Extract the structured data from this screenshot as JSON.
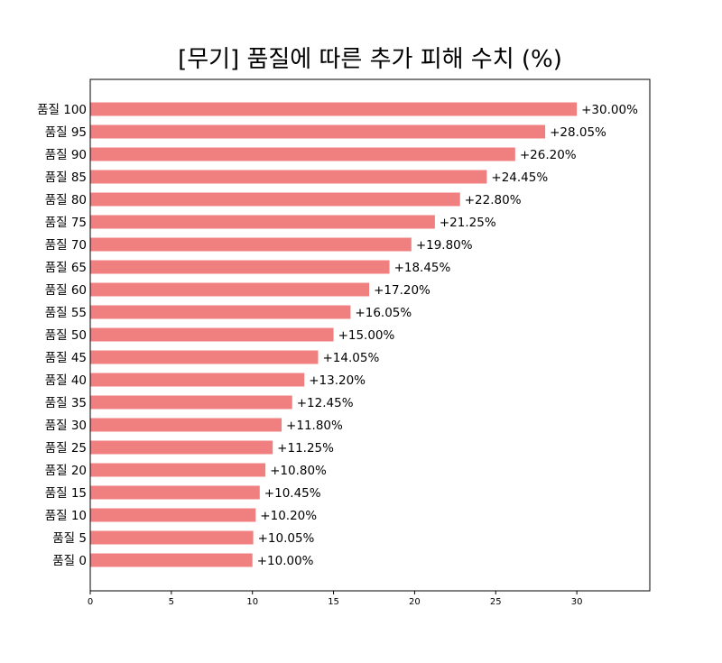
{
  "chart_data": {
    "type": "bar",
    "orientation": "horizontal",
    "title": "[무기]  품질에 따른 추가 피해 수치 (%)",
    "xlabel": "",
    "ylabel": "",
    "xlim": [
      0,
      34.5
    ],
    "xticks": [
      0,
      5,
      10,
      15,
      20,
      25,
      30
    ],
    "grid": false,
    "bar_color": "#f08080",
    "categories": [
      "품질 0",
      "품질 5",
      "품질 10",
      "품질 15",
      "품질 20",
      "품질 25",
      "품질 30",
      "품질 35",
      "품질 40",
      "품질 45",
      "품질 50",
      "품질 55",
      "품질 60",
      "품질 65",
      "품질 70",
      "품질 75",
      "품질 80",
      "품질 85",
      "품질 90",
      "품질 95",
      "품질 100"
    ],
    "values": [
      10.0,
      10.05,
      10.2,
      10.45,
      10.8,
      11.25,
      11.8,
      12.45,
      13.2,
      14.05,
      15.0,
      16.05,
      17.2,
      18.45,
      19.8,
      21.25,
      22.8,
      24.45,
      26.2,
      28.05,
      30.0
    ],
    "value_labels": [
      "+10.00%",
      "+10.05%",
      "+10.20%",
      "+10.45%",
      "+10.80%",
      "+11.25%",
      "+11.80%",
      "+12.45%",
      "+13.20%",
      "+14.05%",
      "+15.00%",
      "+16.05%",
      "+17.20%",
      "+18.45%",
      "+19.80%",
      "+21.25%",
      "+22.80%",
      "+24.45%",
      "+26.20%",
      "+28.05%",
      "+30.00%"
    ]
  }
}
